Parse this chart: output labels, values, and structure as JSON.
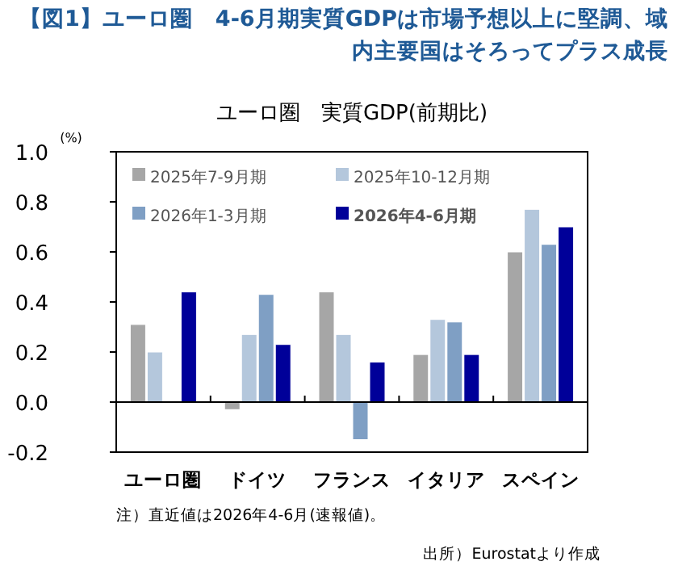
{
  "chart_data": {
    "type": "bar",
    "title": "【図1】ユーロ圏　4-6月期実質GDPは市場予想以上に堅調、域内主要国はそろってプラス成長",
    "subtitle": "ユーロ圏　実質GDP(前期比)",
    "ylabel": "(%)",
    "categories": [
      "ユーロ圏",
      "ドイツ",
      "フランス",
      "イタリア",
      "スペイン"
    ],
    "series": [
      {
        "name": "2025年7-9月期",
        "color": "#a6a6a6",
        "values": [
          0.31,
          -0.03,
          0.44,
          0.19,
          0.6
        ]
      },
      {
        "name": "2025年10-12月期",
        "color": "#b4c7dc",
        "values": [
          0.2,
          0.27,
          0.27,
          0.33,
          0.77
        ]
      },
      {
        "name": "2026年1-3月期",
        "color": "#7f9fc4",
        "values": [
          0.0,
          0.43,
          -0.15,
          0.32,
          0.63
        ]
      },
      {
        "name": "2026年4-6月期",
        "color": "#000099",
        "values": [
          0.44,
          0.23,
          0.16,
          0.19,
          0.7
        ]
      }
    ],
    "ylim": [
      -0.2,
      1.0
    ],
    "yticks": [
      {
        "value": -0.2,
        "label": "-0.2"
      },
      {
        "value": 0,
        "label": "0.0"
      },
      {
        "value": 0.2,
        "label": "0.2"
      },
      {
        "value": 0.4,
        "label": "0.4"
      },
      {
        "value": 0.6,
        "label": "0.6"
      },
      {
        "value": 0.8,
        "label": "0.8"
      },
      {
        "value": 1.0,
        "label": "1.0"
      }
    ],
    "legend": "top left",
    "annotations": [
      "注）直近値は2026年4-6月(速報値)。",
      "出所）Eurostatより作成"
    ]
  }
}
